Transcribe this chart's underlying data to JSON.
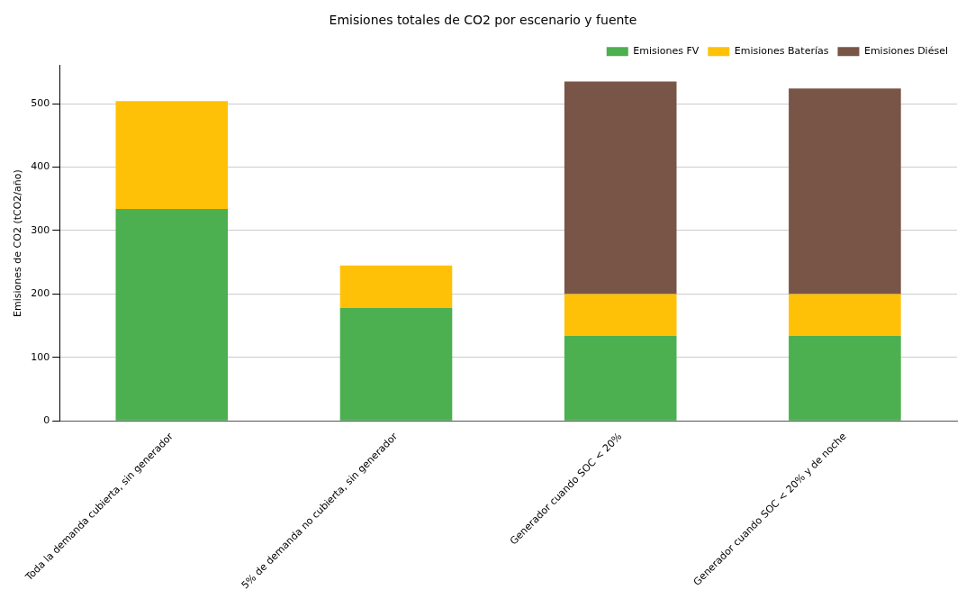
{
  "chart_data": {
    "type": "bar",
    "title": "Emisiones totales de CO2 por escenario y fuente",
    "ylabel": "Emisiones de CO2 (tCO2/año)",
    "categories": [
      "Toda la demanda cubierta, sin generador",
      "5% de demanda no cubierta, sin generador",
      "Generador cuando SOC < 20%",
      "Generador cuando SOC < 20% y de noche"
    ],
    "series": [
      {
        "name": "Emisiones FV",
        "color": "#4caf50",
        "values": [
          334,
          178,
          134,
          134
        ]
      },
      {
        "name": "Emisiones Baterías",
        "color": "#ffc107",
        "values": [
          170,
          67,
          66,
          66
        ]
      },
      {
        "name": "Emisiones Diésel",
        "color": "#795548",
        "values": [
          0,
          0,
          335,
          324
        ]
      }
    ],
    "stacked": true,
    "ylim": [
      0,
      560
    ],
    "yticks": [
      0,
      100,
      200,
      300,
      400,
      500
    ],
    "grid": "y",
    "legend": "top right"
  }
}
